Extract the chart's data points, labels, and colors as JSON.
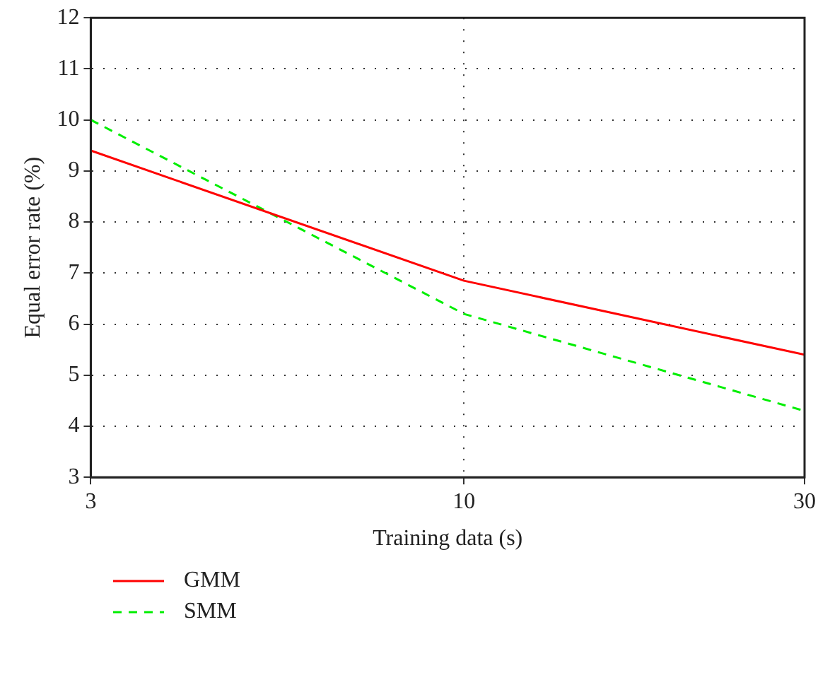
{
  "chart_data": {
    "type": "line",
    "xlabel": "Training data (s)",
    "ylabel": "Equal error rate (%)",
    "log": "x",
    "x": [
      3,
      10,
      30
    ],
    "xlim": [
      3,
      30
    ],
    "xticks": [
      3,
      10,
      30
    ],
    "ylim": [
      3,
      12
    ],
    "yticks": [
      3,
      4,
      5,
      6,
      7,
      8,
      9,
      10,
      11,
      12
    ],
    "grid": true,
    "legend": "bottom left",
    "marker": "none",
    "series": [
      {
        "name": "GMM",
        "color": "#ff0000",
        "values": [
          9.4,
          6.85,
          5.4
        ],
        "line_style": "solid"
      },
      {
        "name": "SMM",
        "color": "#00ee00",
        "values": [
          10.0,
          6.2,
          4.3
        ],
        "line_style": "dashed"
      }
    ]
  }
}
